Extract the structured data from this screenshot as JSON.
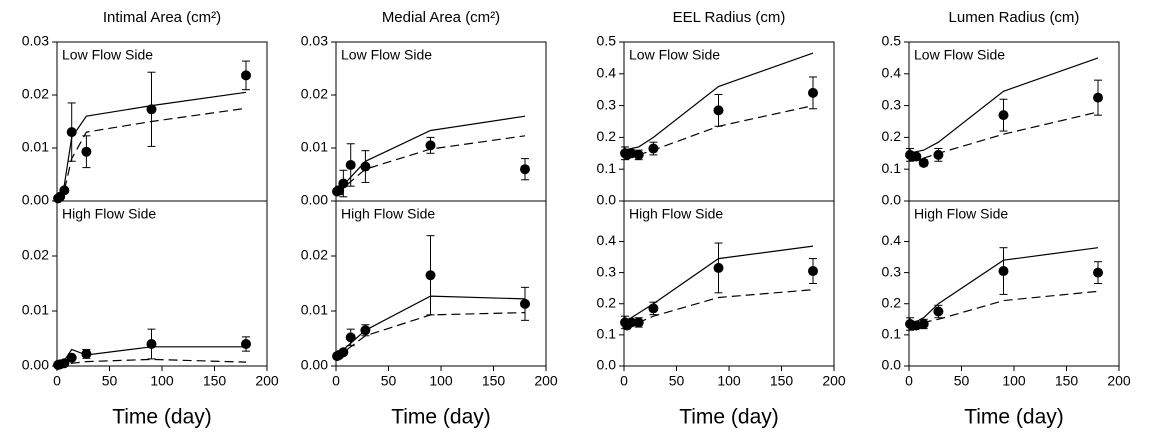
{
  "chart_data": [
    {
      "type": "line",
      "title": "Intimal Area (cm²)",
      "annotation": "Low Flow Side",
      "xlim": [
        0,
        200
      ],
      "ylim": [
        0,
        0.03
      ],
      "yticks": [
        {
          "value": 0,
          "label": "0.00"
        },
        0.01,
        0.02,
        0.03
      ],
      "series": [
        {
          "style": "points",
          "color": "#000000",
          "x": [
            1,
            3,
            7,
            14,
            28,
            90,
            180
          ],
          "values": [
            0.0005,
            0.0008,
            0.002,
            0.013,
            0.0093,
            0.0173,
            0.0237
          ],
          "errors": [
            null,
            null,
            null,
            0.0055,
            0.003,
            0.007,
            0.0027
          ]
        },
        {
          "style": "solid",
          "color": "#000000",
          "x": [
            0,
            7,
            14,
            28,
            90,
            180
          ],
          "values": [
            0,
            0.003,
            0.012,
            0.016,
            0.018,
            0.0205
          ]
        },
        {
          "style": "dashed",
          "color": "#000000",
          "x": [
            0,
            7,
            14,
            28,
            90,
            180
          ],
          "values": [
            0,
            0.002,
            0.008,
            0.013,
            0.015,
            0.0175
          ]
        }
      ]
    },
    {
      "type": "line",
      "annotation": "High Flow Side",
      "xlabel": "Time (day)",
      "xlim": [
        0,
        200
      ],
      "xticks": [
        0,
        50,
        100,
        150,
        200
      ],
      "ylim": [
        0,
        0.03
      ],
      "yticks": [
        {
          "value": 0,
          "label": "0.00"
        },
        0.01,
        0.02
      ],
      "series": [
        {
          "style": "points",
          "color": "#000000",
          "x": [
            1,
            3,
            7,
            14,
            28,
            90,
            180
          ],
          "values": [
            0.0002,
            0.0003,
            0.0005,
            0.0015,
            0.0022,
            0.004,
            0.004
          ],
          "errors": [
            null,
            null,
            null,
            null,
            0.0008,
            0.0027,
            0.0013
          ]
        },
        {
          "style": "solid",
          "color": "#000000",
          "x": [
            0,
            7,
            14,
            28,
            90,
            180
          ],
          "values": [
            0,
            0.001,
            0.003,
            0.002,
            0.0035,
            0.0035
          ]
        },
        {
          "style": "dashed",
          "color": "#000000",
          "x": [
            0,
            14,
            28,
            90,
            180
          ],
          "values": [
            0,
            0.0005,
            0.0008,
            0.0012,
            0.0007
          ]
        }
      ]
    },
    {
      "type": "line",
      "title": "Medial Area (cm²)",
      "annotation": "Low Flow Side",
      "xlim": [
        0,
        200
      ],
      "ylim": [
        0,
        0.03
      ],
      "yticks": [
        {
          "value": 0,
          "label": "0.00"
        },
        0.01,
        0.02,
        0.03
      ],
      "series": [
        {
          "style": "points",
          "color": "#000000",
          "x": [
            1,
            3,
            7,
            14,
            28,
            90,
            180
          ],
          "values": [
            0.0018,
            0.002,
            0.0033,
            0.0068,
            0.0065,
            0.0105,
            0.006
          ],
          "errors": [
            null,
            0.0008,
            0.0025,
            0.004,
            0.003,
            0.0015,
            0.002
          ]
        },
        {
          "style": "solid",
          "color": "#000000",
          "x": [
            0,
            7,
            28,
            90,
            180
          ],
          "values": [
            0.0015,
            0.003,
            0.0075,
            0.0133,
            0.016
          ]
        },
        {
          "style": "dashed",
          "color": "#000000",
          "x": [
            0,
            7,
            28,
            90,
            180
          ],
          "values": [
            0.0015,
            0.0025,
            0.006,
            0.0098,
            0.0123
          ]
        }
      ]
    },
    {
      "type": "line",
      "annotation": "High Flow Side",
      "xlabel": "Time (day)",
      "xlim": [
        0,
        200
      ],
      "xticks": [
        0,
        50,
        100,
        150,
        200
      ],
      "ylim": [
        0,
        0.03
      ],
      "yticks": [
        {
          "value": 0,
          "label": "0.00"
        },
        0.01,
        0.02
      ],
      "series": [
        {
          "style": "points",
          "color": "#000000",
          "x": [
            1,
            3,
            7,
            14,
            28,
            90,
            180
          ],
          "values": [
            0.0018,
            0.002,
            0.0025,
            0.0052,
            0.0065,
            0.0165,
            0.0113
          ],
          "errors": [
            null,
            null,
            null,
            0.0015,
            0.001,
            0.0072,
            0.003
          ]
        },
        {
          "style": "solid",
          "color": "#000000",
          "x": [
            0,
            7,
            28,
            90,
            180
          ],
          "values": [
            0.0015,
            0.003,
            0.0065,
            0.0127,
            0.0122
          ]
        },
        {
          "style": "dashed",
          "color": "#000000",
          "x": [
            0,
            7,
            28,
            90,
            180
          ],
          "values": [
            0.0015,
            0.0025,
            0.0055,
            0.0093,
            0.0097
          ]
        }
      ]
    },
    {
      "type": "line",
      "title": "EEL Radius (cm)",
      "annotation": "Low Flow Side",
      "xlim": [
        0,
        200
      ],
      "ylim": [
        0,
        0.5
      ],
      "yticks": [
        {
          "value": 0,
          "label": "0.0"
        },
        0.1,
        0.2,
        0.3,
        0.4,
        0.5
      ],
      "series": [
        {
          "style": "points",
          "color": "#000000",
          "x": [
            1,
            3,
            7,
            14,
            28,
            90,
            180
          ],
          "values": [
            0.15,
            0.145,
            0.15,
            0.145,
            0.165,
            0.285,
            0.34
          ],
          "errors": [
            0.02,
            null,
            null,
            0.015,
            0.02,
            0.05,
            0.05
          ]
        },
        {
          "style": "solid",
          "color": "#000000",
          "x": [
            0,
            14,
            28,
            90,
            180
          ],
          "values": [
            0.16,
            0.17,
            0.2,
            0.36,
            0.465
          ]
        },
        {
          "style": "dashed",
          "color": "#000000",
          "x": [
            0,
            14,
            28,
            90,
            180
          ],
          "values": [
            0.14,
            0.145,
            0.16,
            0.235,
            0.3
          ]
        }
      ]
    },
    {
      "type": "line",
      "annotation": "High Flow Side",
      "xlabel": "Time (day)",
      "xlim": [
        0,
        200
      ],
      "xticks": [
        0,
        50,
        100,
        150,
        200
      ],
      "ylim": [
        0,
        0.53
      ],
      "yticks": [
        {
          "value": 0,
          "label": "0.0"
        },
        0.1,
        0.2,
        0.3,
        0.4
      ],
      "series": [
        {
          "style": "points",
          "color": "#000000",
          "x": [
            1,
            3,
            7,
            14,
            28,
            90,
            180
          ],
          "values": [
            0.14,
            0.13,
            0.14,
            0.14,
            0.185,
            0.315,
            0.305
          ],
          "errors": [
            0.02,
            null,
            null,
            0.015,
            0.02,
            0.08,
            0.04
          ]
        },
        {
          "style": "solid",
          "color": "#000000",
          "x": [
            0,
            7,
            28,
            90,
            180
          ],
          "values": [
            0.13,
            0.155,
            0.2,
            0.345,
            0.385
          ]
        },
        {
          "style": "dashed",
          "color": "#000000",
          "x": [
            0,
            14,
            28,
            90,
            180
          ],
          "values": [
            0.13,
            0.14,
            0.16,
            0.22,
            0.245
          ]
        }
      ]
    },
    {
      "type": "line",
      "title": "Lumen Radius (cm)",
      "annotation": "Low Flow Side",
      "xlim": [
        0,
        200
      ],
      "ylim": [
        0,
        0.5
      ],
      "yticks": [
        {
          "value": 0,
          "label": "0.0"
        },
        0.1,
        0.2,
        0.3,
        0.4,
        0.5
      ],
      "series": [
        {
          "style": "points",
          "color": "#000000",
          "x": [
            1,
            3,
            7,
            14,
            28,
            90,
            180
          ],
          "values": [
            0.145,
            0.14,
            0.14,
            0.12,
            0.145,
            0.27,
            0.325
          ],
          "errors": [
            0.02,
            null,
            null,
            0.01,
            0.02,
            0.05,
            0.055
          ]
        },
        {
          "style": "solid",
          "color": "#000000",
          "x": [
            0,
            14,
            28,
            90,
            180
          ],
          "values": [
            0.15,
            0.16,
            0.185,
            0.345,
            0.45
          ]
        },
        {
          "style": "dashed",
          "color": "#000000",
          "x": [
            0,
            14,
            28,
            90,
            180
          ],
          "values": [
            0.13,
            0.135,
            0.15,
            0.21,
            0.28
          ]
        }
      ]
    },
    {
      "type": "line",
      "annotation": "High Flow Side",
      "xlabel": "Time (day)",
      "xlim": [
        0,
        200
      ],
      "xticks": [
        0,
        50,
        100,
        150,
        200
      ],
      "ylim": [
        0,
        0.53
      ],
      "yticks": [
        {
          "value": 0,
          "label": "0.0"
        },
        0.1,
        0.2,
        0.3,
        0.4
      ],
      "series": [
        {
          "style": "points",
          "color": "#000000",
          "x": [
            1,
            3,
            7,
            14,
            28,
            90,
            180
          ],
          "values": [
            0.135,
            0.13,
            0.13,
            0.135,
            0.175,
            0.305,
            0.3
          ],
          "errors": [
            0.02,
            null,
            null,
            0.015,
            0.02,
            0.075,
            0.035
          ]
        },
        {
          "style": "solid",
          "color": "#000000",
          "x": [
            0,
            14,
            28,
            90,
            180
          ],
          "values": [
            0.13,
            0.155,
            0.2,
            0.34,
            0.38
          ]
        },
        {
          "style": "dashed",
          "color": "#000000",
          "x": [
            0,
            14,
            28,
            90,
            180
          ],
          "values": [
            0.13,
            0.14,
            0.15,
            0.21,
            0.24
          ]
        }
      ]
    }
  ]
}
